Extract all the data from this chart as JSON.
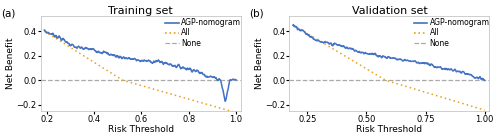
{
  "title_a": "Training set",
  "title_b": "Validation set",
  "label_a": "(a)",
  "label_b": "(b)",
  "xlabel": "Risk Threshold",
  "ylabel": "Net Benefit",
  "legend_labels": [
    "AGP-nomogram",
    "All",
    "None"
  ],
  "colors": {
    "nomogram": "#4472C4",
    "all": "#E8A020",
    "none": "#AAAAAA"
  },
  "ylim": [
    -0.25,
    0.52
  ],
  "xlim_a": [
    0.175,
    1.02
  ],
  "xlim_b": [
    0.175,
    1.02
  ],
  "xticks_a": [
    0.2,
    0.4,
    0.6,
    0.8,
    1.0
  ],
  "xticks_b": [
    0.25,
    0.5,
    0.75,
    1.0
  ],
  "yticks": [
    -0.2,
    0.0,
    0.2,
    0.4
  ],
  "bg_color": "#ffffff",
  "linewidth_nom": 1.1,
  "linewidth_all": 1.1,
  "linewidth_none": 0.9,
  "title_fontsize": 8,
  "label_fontsize": 6.5,
  "tick_fontsize": 6,
  "legend_fontsize": 5.5
}
